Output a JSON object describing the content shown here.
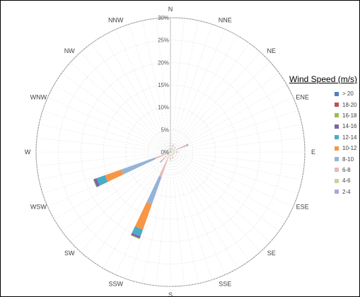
{
  "chart_data": {
    "type": "radar-stacked-bar",
    "title": "",
    "directions": [
      "N",
      "NNE",
      "NE",
      "ENE",
      "E",
      "ESE",
      "SE",
      "SSE",
      "S",
      "SSW",
      "SW",
      "WSW",
      "W",
      "WNW",
      "NW",
      "NNW"
    ],
    "radial_ticks": [
      "0%",
      "5%",
      "10%",
      "15%",
      "20%",
      "25%",
      "30%"
    ],
    "rmax": 30,
    "grid": true,
    "legend": {
      "title": "Wind Speed (m/s)",
      "position": "right"
    },
    "bin_colors": {
      "2-4": "#B7A2D7",
      "4-6": "#C3D69B",
      "6-8": "#E6B9B8",
      "8-10": "#95B3D7",
      "10-12": "#F79646",
      "12-14": "#4BACC6",
      "14-16": "#8064A2",
      "16-18": "#9BBB59",
      "18-20": "#C0504D",
      "> 20": "#4F81BD"
    },
    "legend_order": [
      "> 20",
      "18-20",
      "16-18",
      "14-16",
      "12-14",
      "10-12",
      "8-10",
      "6-8",
      "4-6",
      "2-4"
    ],
    "stack_order": [
      "2-4",
      "4-6",
      "6-8",
      "8-10",
      "10-12",
      "12-14",
      "14-16",
      "16-18",
      "18-20",
      "> 20"
    ],
    "sector_width_deg": 6,
    "series": [
      {
        "name": "2-4",
        "values": [
          0.3,
          0.4,
          0.4,
          0.4,
          0.4,
          0.3,
          0.3,
          0.3,
          0.3,
          0.4,
          0.4,
          0.4,
          0.3,
          0.3,
          0.3,
          0.3
        ]
      },
      {
        "name": "4-6",
        "values": [
          0.3,
          0.5,
          0.5,
          1.2,
          0.7,
          0.4,
          0.4,
          0.5,
          0.5,
          1.0,
          0.8,
          0.8,
          0.3,
          0.3,
          0.3,
          0.3
        ]
      },
      {
        "name": "6-8",
        "values": [
          0.1,
          0.6,
          0.6,
          2.3,
          0.6,
          0.3,
          0.3,
          0.7,
          1.0,
          4.5,
          1.7,
          2.5,
          0.4,
          0.2,
          0.2,
          0.1
        ]
      },
      {
        "name": "8-10",
        "values": [
          0,
          0.3,
          0.1,
          0.4,
          0.1,
          0,
          0,
          0.1,
          0.1,
          6.5,
          0.3,
          8.0,
          0,
          0,
          0,
          0
        ]
      },
      {
        "name": "10-12",
        "values": [
          0,
          0,
          0,
          0,
          0,
          0,
          0,
          0,
          0,
          6.0,
          0,
          3.8,
          0,
          0,
          0,
          0
        ]
      },
      {
        "name": "12-14",
        "values": [
          0,
          0,
          0,
          0,
          0,
          0,
          0,
          0,
          0,
          1.6,
          0,
          2.0,
          0,
          0,
          0,
          0
        ]
      },
      {
        "name": "14-16",
        "values": [
          0,
          0,
          0,
          0,
          0,
          0,
          0,
          0,
          0,
          0.5,
          0,
          0.7,
          0,
          0,
          0,
          0
        ]
      },
      {
        "name": "16-18",
        "values": [
          0,
          0,
          0,
          0,
          0,
          0,
          0,
          0,
          0,
          0.1,
          0,
          0.1,
          0,
          0,
          0,
          0
        ]
      },
      {
        "name": "18-20",
        "values": [
          0,
          0,
          0,
          0,
          0,
          0,
          0,
          0,
          0,
          0,
          0,
          0,
          0,
          0,
          0,
          0
        ]
      },
      {
        "name": "> 20",
        "values": [
          0,
          0,
          0,
          0,
          0,
          0,
          0,
          0,
          0,
          0,
          0,
          0,
          0,
          0,
          0,
          0
        ]
      }
    ]
  }
}
